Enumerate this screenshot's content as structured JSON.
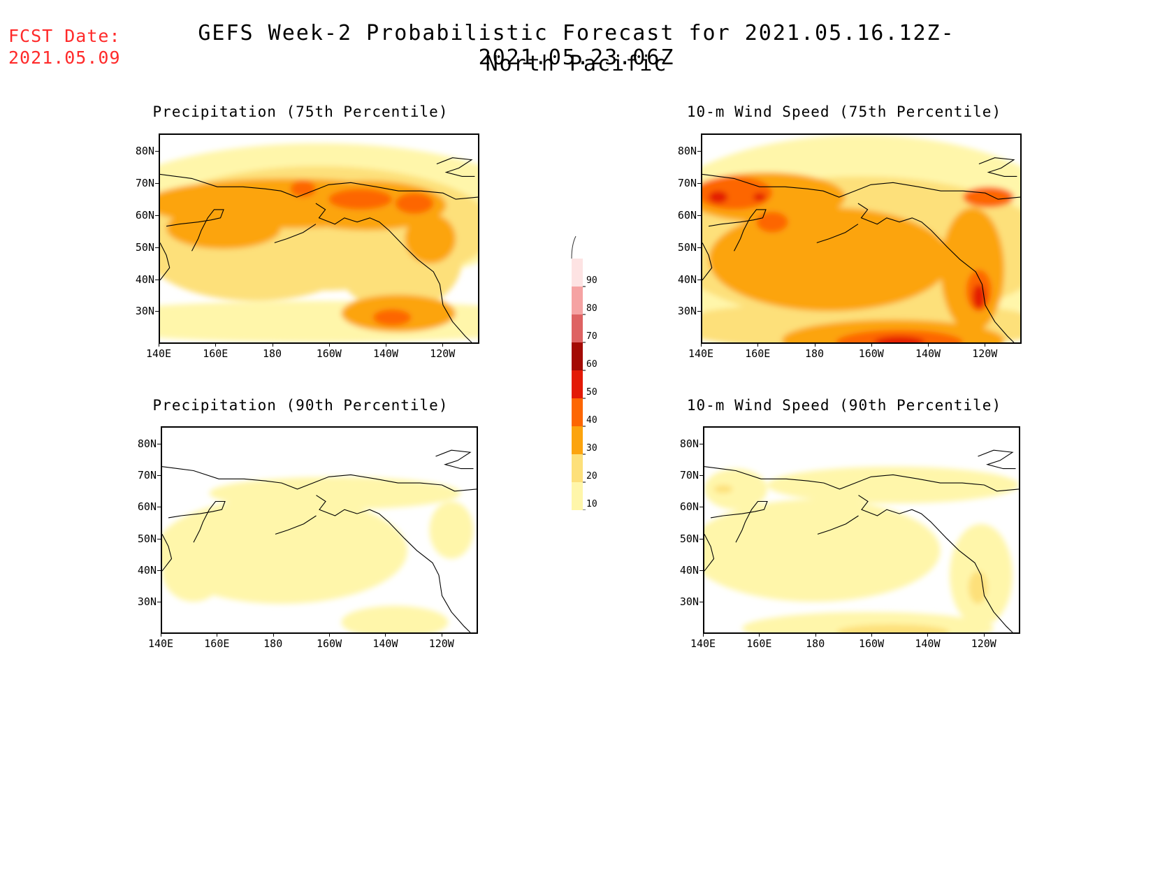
{
  "header": {
    "fcst_label": "FCST Date:",
    "fcst_date": "2021.05.09",
    "title": "GEFS Week-2 Probabilistic Forecast for 2021.05.16.12Z-2021.05.23.06Z",
    "region": "North Pacific"
  },
  "axes": {
    "lat_labels": [
      "80N",
      "70N",
      "60N",
      "50N",
      "40N",
      "30N"
    ],
    "lon_labels": [
      "140E",
      "160E",
      "180",
      "160W",
      "140W",
      "120W"
    ]
  },
  "panels": [
    {
      "title": "Precipitation (75th Percentile)",
      "field": "precip75",
      "palette_level": "moderate"
    },
    {
      "title": "10-m Wind Speed (75th Percentile)",
      "field": "wind75",
      "palette_level": "strong"
    },
    {
      "title": "Precipitation (90th Percentile)",
      "field": "precip90",
      "palette_level": "light"
    },
    {
      "title": "10-m Wind Speed (90th Percentile)",
      "field": "wind90",
      "palette_level": "light"
    }
  ],
  "colorbar": {
    "levels": [
      "10",
      "20",
      "30",
      "40",
      "50",
      "60",
      "70",
      "80",
      "90"
    ],
    "colors": [
      "#fff6aa",
      "#fde07a",
      "#fca40e",
      "#fd6602",
      "#e31a06",
      "#a40b05",
      "#de6363",
      "#f5a3a3",
      "#fde3e3"
    ]
  }
}
